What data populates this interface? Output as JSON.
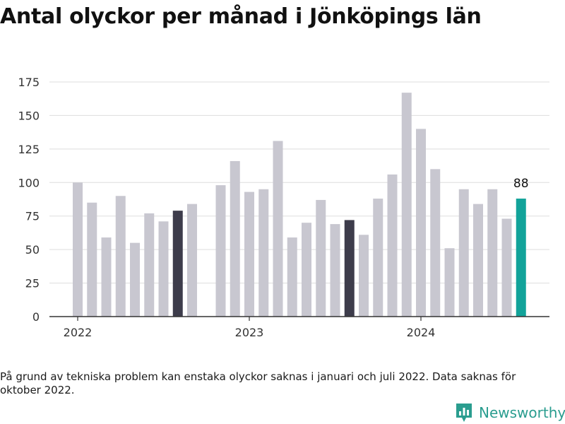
{
  "chart_data": {
    "type": "bar",
    "title": "Antal olyckor per månad i Jönköpings län",
    "xlabel": "",
    "ylabel": "",
    "ylim": [
      0,
      175
    ],
    "yticks": [
      0,
      25,
      50,
      75,
      100,
      125,
      150,
      175
    ],
    "x_tick_labels": [
      {
        "label": "2022",
        "month": "2022-01"
      },
      {
        "label": "2023",
        "month": "2023-01"
      },
      {
        "label": "2024",
        "month": "2024-01"
      }
    ],
    "grid": true,
    "months": [
      "2022-01",
      "2022-02",
      "2022-03",
      "2022-04",
      "2022-05",
      "2022-06",
      "2022-07",
      "2022-08",
      "2022-09",
      "2022-10",
      "2022-11",
      "2022-12",
      "2023-01",
      "2023-02",
      "2023-03",
      "2023-04",
      "2023-05",
      "2023-06",
      "2023-07",
      "2023-08",
      "2023-09",
      "2023-10",
      "2023-11",
      "2023-12",
      "2024-01",
      "2024-02",
      "2024-03",
      "2024-04",
      "2024-05",
      "2024-06",
      "2024-07",
      "2024-08"
    ],
    "values": [
      100,
      85,
      59,
      90,
      55,
      77,
      71,
      79,
      84,
      null,
      98,
      116,
      93,
      95,
      131,
      59,
      70,
      87,
      69,
      72,
      61,
      88,
      106,
      167,
      140,
      110,
      51,
      95,
      84,
      95,
      73,
      88
    ],
    "highlight_dark": [
      "2022-08",
      "2023-08"
    ],
    "highlight_last": "2024-08",
    "last_value_label": "88",
    "colors": {
      "bar": "#c8c7d0",
      "dark": "#3d3c4b",
      "last": "#12a39a",
      "grid": "#dddddd",
      "axis": "#333333",
      "tick_text": "#333333"
    }
  },
  "footnote": "På grund av tekniska problem kan enstaka olyckor saknas i januari och juli 2022. Data saknas för oktober 2022.",
  "brand": {
    "name": "Newsworthy",
    "logo_icon": "bar-chart-badge-icon",
    "color": "#2a9d8f"
  }
}
